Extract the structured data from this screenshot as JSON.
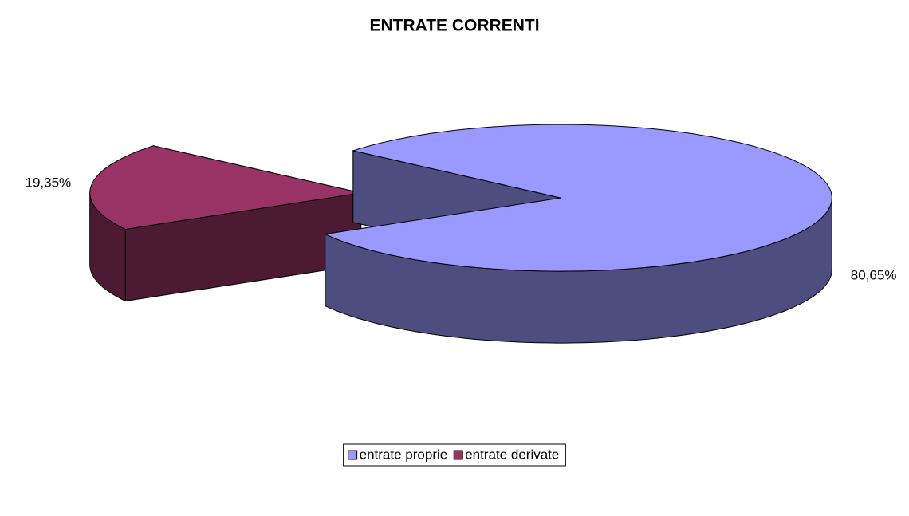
{
  "chart_data": {
    "type": "pie",
    "title": "ENTRATE CORRENTI",
    "categories": [
      "entrate proprie",
      "entrate derivate"
    ],
    "values": [
      80.65,
      19.35
    ],
    "value_labels": [
      "80,65%",
      "19,35%"
    ],
    "colors": [
      "#9999ff",
      "#993366"
    ],
    "legend": "bottom"
  }
}
